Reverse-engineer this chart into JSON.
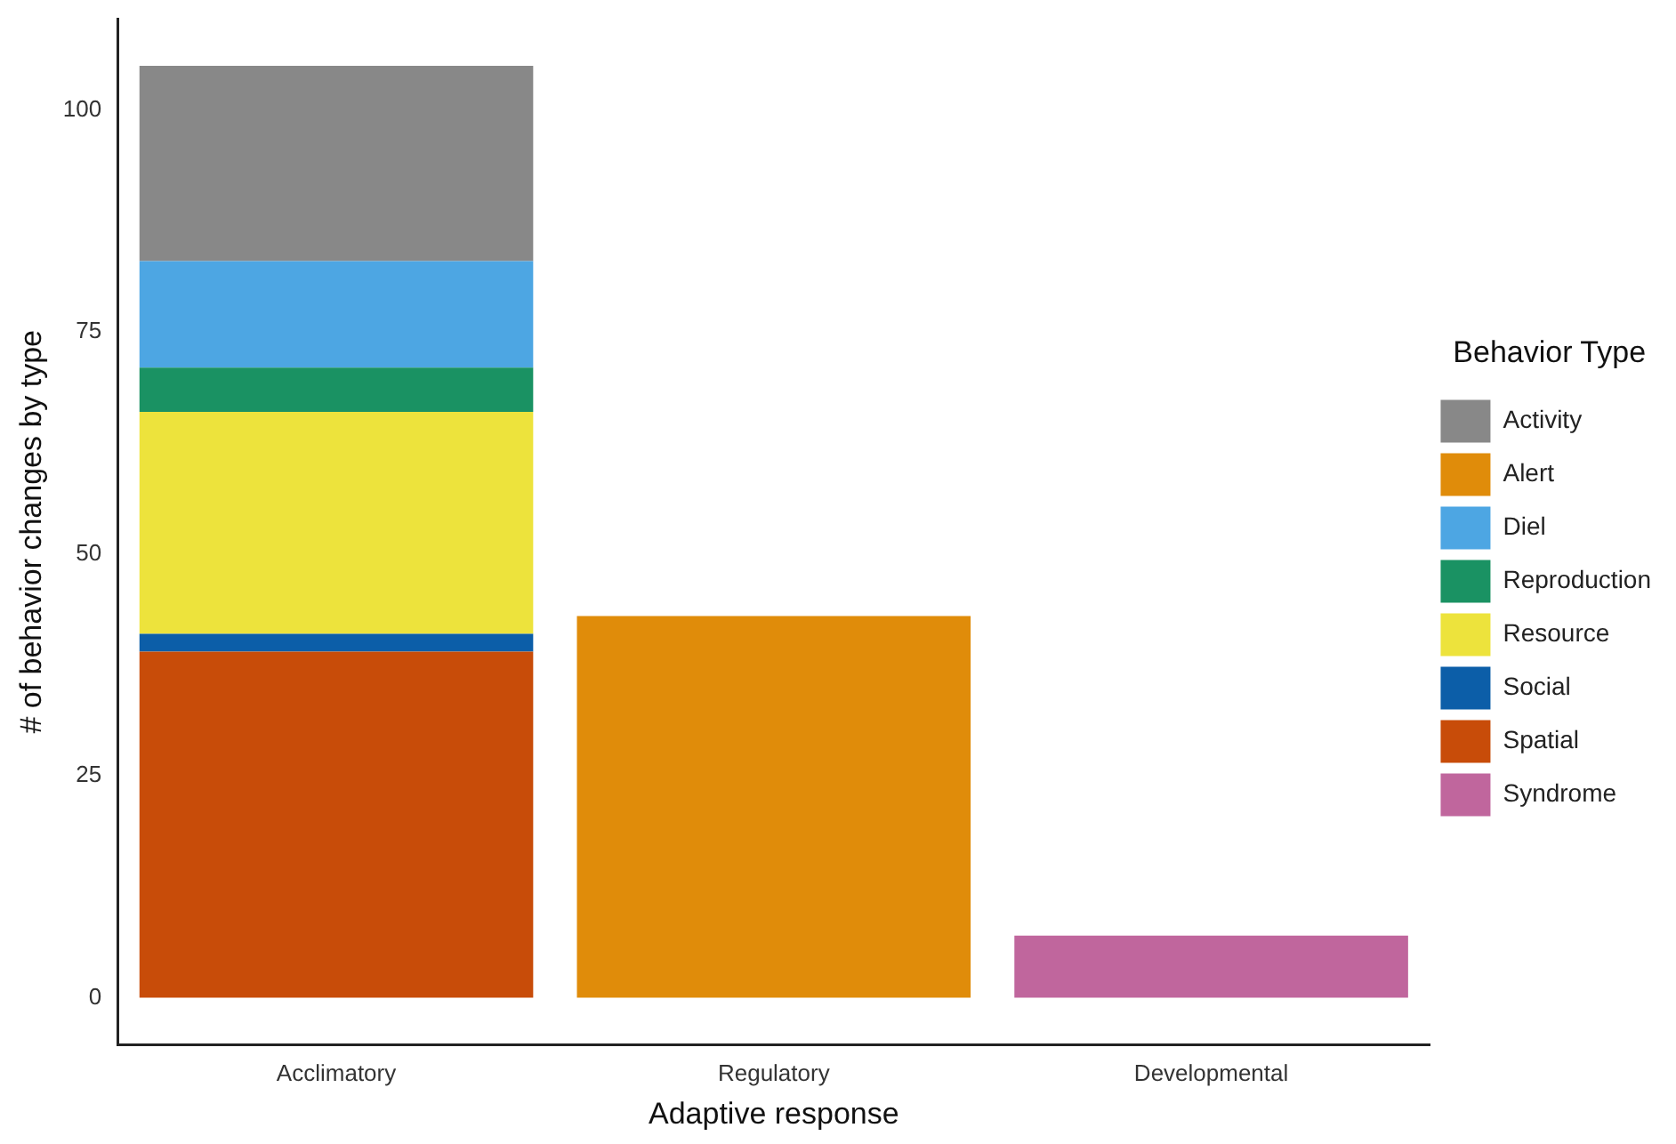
{
  "chart_data": {
    "type": "bar",
    "stacked": true,
    "xlabel": "Adaptive response",
    "ylabel": "# of behavior changes by type",
    "legend_title": "Behavior Type",
    "legend": "right",
    "grid": false,
    "categories": [
      "Acclimatory",
      "Regulatory",
      "Developmental"
    ],
    "series": [
      {
        "name": "Syndrome",
        "color": "#c0669d",
        "values": [
          null,
          null,
          7
        ]
      },
      {
        "name": "Spatial",
        "color": "#c84c09",
        "values": [
          39,
          null,
          null
        ]
      },
      {
        "name": "Social",
        "color": "#0c5ea8",
        "values": [
          2,
          null,
          null
        ]
      },
      {
        "name": "Resource",
        "color": "#ede33c",
        "values": [
          25,
          null,
          null
        ]
      },
      {
        "name": "Reproduction",
        "color": "#1a9263",
        "values": [
          5,
          null,
          null
        ]
      },
      {
        "name": "Diel",
        "color": "#4da6e3",
        "values": [
          12,
          null,
          null
        ]
      },
      {
        "name": "Alert",
        "color": "#e08c0a",
        "values": [
          null,
          43,
          null
        ]
      },
      {
        "name": "Activity",
        "color": "#888888",
        "values": [
          22,
          null,
          null
        ]
      }
    ],
    "ylim": [
      -5.25,
      110.25
    ],
    "yticks": [
      0,
      25,
      50,
      75,
      100
    ]
  }
}
